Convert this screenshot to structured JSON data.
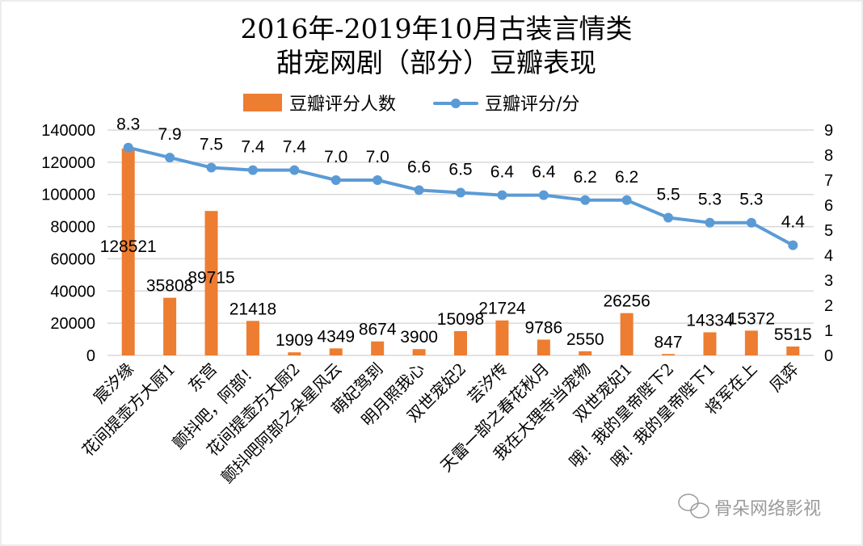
{
  "chart_data": {
    "type": "bar+line",
    "title_lines": [
      "2016年-2019年10月古装言情类",
      "甜宠网剧（部分）豆瓣表现"
    ],
    "categories": [
      "宸汐缘",
      "花间提壶方大厨1",
      "东宫",
      "颤抖吧，阿部！",
      "花间提壶方大厨2",
      "颤抖吧阿部之朵星风云",
      "萌妃驾到",
      "明月照我心",
      "双世宠妃2",
      "芸汐传",
      "天雷一部之春花秋月",
      "我在大理寺当宠物",
      "双世宠妃1",
      "哦！我的皇帝陛下2",
      "哦！我的皇帝陛下1",
      "将军在上",
      "凤弈"
    ],
    "series": [
      {
        "name": "豆瓣评分人数",
        "type": "bar",
        "axis": "left",
        "color": "#ED7D31",
        "values": [
          128521,
          35808,
          89715,
          21418,
          1909,
          4349,
          8674,
          3900,
          15098,
          21724,
          9786,
          2550,
          26256,
          847,
          14334,
          15372,
          5515
        ]
      },
      {
        "name": "豆瓣评分/分",
        "type": "line",
        "axis": "right",
        "color": "#5B9BD5",
        "values": [
          8.3,
          7.9,
          7.5,
          7.4,
          7.4,
          7.0,
          7.0,
          6.6,
          6.5,
          6.4,
          6.4,
          6.2,
          6.2,
          5.5,
          5.3,
          5.3,
          4.4
        ]
      }
    ],
    "left_axis": {
      "ylim": [
        0,
        140000
      ],
      "ticks": [
        "0",
        "20000",
        "40000",
        "60000",
        "80000",
        "100000",
        "120000",
        "140000"
      ]
    },
    "right_axis": {
      "ylim": [
        0,
        9
      ],
      "ticks": [
        "0",
        "1",
        "2",
        "3",
        "4",
        "5",
        "6",
        "7",
        "8",
        "9"
      ]
    },
    "grid": true,
    "legend": "top"
  },
  "watermark": "骨朵网络影视"
}
